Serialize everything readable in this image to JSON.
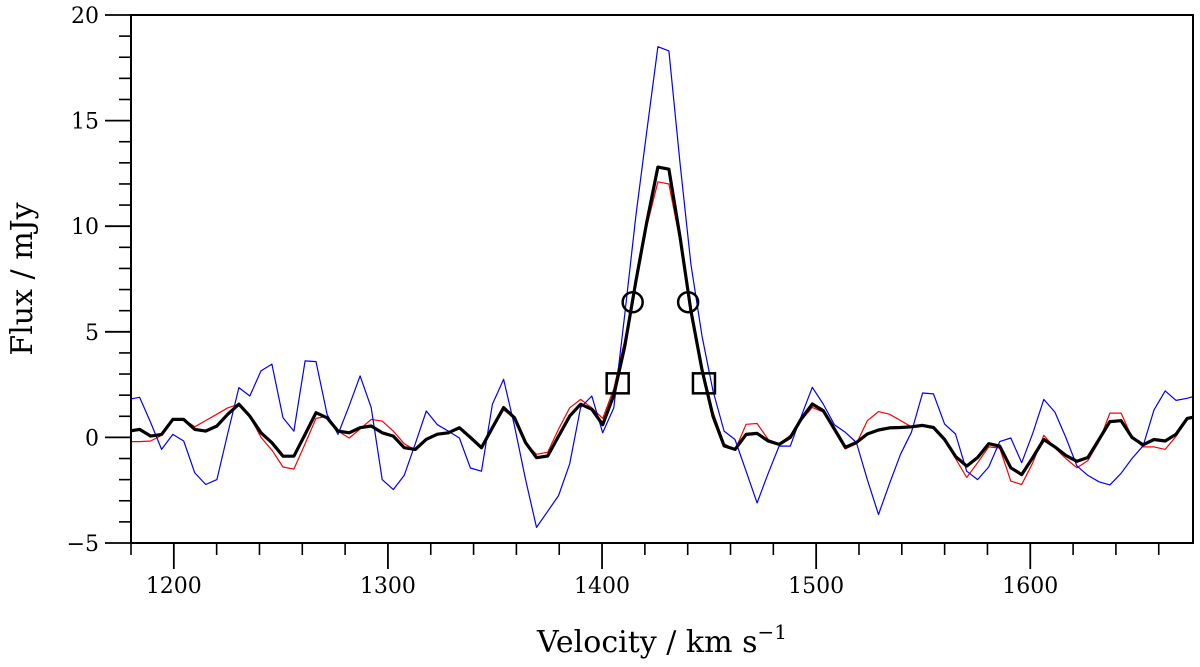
{
  "chart_data": {
    "type": "line",
    "title": "",
    "xlabel": "Velocity / km s",
    "xlabel_superscript": "−1",
    "ylabel": "Flux / mJy",
    "xlim": [
      1180,
      1676
    ],
    "ylim": [
      -5,
      20
    ],
    "x_ticks": [
      1200,
      1300,
      1400,
      1500,
      1600
    ],
    "x_tick_labels": [
      "1200",
      "1300",
      "1400",
      "1500",
      "1600"
    ],
    "x_minor_tick_step": 20,
    "y_ticks": [
      -5,
      0,
      5,
      10,
      15,
      20
    ],
    "y_tick_labels": [
      "−5",
      "0",
      "5",
      "10",
      "15",
      "20"
    ],
    "y_minor_tick_step": 1,
    "grid": false,
    "legend": "none",
    "x": [
      1178.9,
      1184.0,
      1189.2,
      1194.3,
      1199.5,
      1204.6,
      1209.8,
      1214.9,
      1220.1,
      1225.2,
      1230.4,
      1235.5,
      1240.7,
      1245.8,
      1251.0,
      1256.1,
      1261.3,
      1266.4,
      1271.6,
      1276.7,
      1281.9,
      1287.0,
      1292.2,
      1297.3,
      1302.5,
      1307.6,
      1312.8,
      1317.9,
      1323.1,
      1328.2,
      1333.4,
      1338.5,
      1343.7,
      1348.8,
      1354.0,
      1359.1,
      1364.3,
      1369.4,
      1374.6,
      1379.7,
      1384.9,
      1390.0,
      1395.2,
      1400.3,
      1405.5,
      1410.6,
      1415.8,
      1420.9,
      1426.1,
      1431.2,
      1436.4,
      1441.5,
      1446.7,
      1451.8,
      1457.0,
      1462.1,
      1467.3,
      1472.4,
      1477.6,
      1482.7,
      1487.9,
      1493.0,
      1498.2,
      1503.3,
      1508.5,
      1513.6,
      1518.8,
      1523.9,
      1529.1,
      1534.2,
      1539.4,
      1544.5,
      1549.7,
      1554.8,
      1560.0,
      1565.1,
      1570.3,
      1575.4,
      1580.6,
      1585.7,
      1590.9,
      1596.0,
      1601.2,
      1606.3,
      1611.5,
      1616.6,
      1621.8,
      1626.9,
      1632.1,
      1637.2,
      1642.4,
      1647.5,
      1652.7,
      1657.8,
      1663.0,
      1668.1,
      1673.3,
      1678.4
    ],
    "series": [
      {
        "color": "#ff0000",
        "values": [
          -0.2,
          -0.2,
          -0.17,
          0.1,
          0.8,
          0.85,
          0.5,
          0.8,
          1.1,
          1.4,
          1.57,
          1.0,
          0.0,
          -0.6,
          -1.4,
          -1.5,
          -0.3,
          0.9,
          1.0,
          0.3,
          -0.03,
          0.4,
          0.85,
          0.77,
          0.3,
          -0.3,
          -0.6,
          -0.1,
          0.15,
          0.22,
          0.4,
          0.0,
          -0.5,
          0.4,
          1.3,
          0.9,
          -0.3,
          -0.8,
          -0.7,
          0.4,
          1.4,
          1.8,
          1.4,
          0.9,
          2.3,
          4.6,
          7.3,
          10.0,
          12.1,
          12.0,
          9.3,
          6.2,
          3.3,
          1.2,
          -0.3,
          -0.6,
          0.62,
          0.66,
          -0.1,
          -0.3,
          0.1,
          0.8,
          1.42,
          1.2,
          0.3,
          -0.55,
          -0.3,
          0.79,
          1.22,
          1.1,
          0.8,
          0.5,
          0.55,
          0.45,
          -0.1,
          -1.0,
          -1.9,
          -1.2,
          -0.45,
          -0.5,
          -2.07,
          -2.23,
          -1.2,
          0.1,
          -0.5,
          -1.0,
          -1.44,
          -1.1,
          -0.2,
          1.15,
          1.15,
          0.0,
          -0.45,
          -0.45,
          -0.57,
          0.05,
          0.9,
          1.0
        ]
      },
      {
        "color": "#0000ff",
        "values": [
          1.8,
          1.9,
          0.7,
          -0.57,
          0.14,
          -0.17,
          -1.68,
          -2.23,
          -2.0,
          0.2,
          2.36,
          1.96,
          3.15,
          3.47,
          0.93,
          0.3,
          3.62,
          3.59,
          1.09,
          0.14,
          1.5,
          2.91,
          1.41,
          -2.0,
          -2.47,
          -1.8,
          -0.3,
          1.25,
          0.6,
          0.3,
          -0.03,
          -1.45,
          -1.6,
          1.57,
          2.75,
          0.54,
          -2.0,
          -4.26,
          -3.5,
          -2.75,
          -1.25,
          1.41,
          1.96,
          0.22,
          1.4,
          5.8,
          10.5,
          14.5,
          18.5,
          18.3,
          13.0,
          8.2,
          4.8,
          2.2,
          0.3,
          -0.1,
          -1.6,
          -3.1,
          -1.7,
          -0.41,
          -0.41,
          1.0,
          2.37,
          1.58,
          0.6,
          0.24,
          -0.24,
          -2.0,
          -3.65,
          -2.2,
          -0.8,
          0.24,
          2.1,
          2.06,
          0.63,
          0.16,
          -1.6,
          -2.0,
          -1.4,
          -0.2,
          -0.03,
          -1.2,
          0.2,
          1.8,
          1.2,
          0.0,
          -1.36,
          -1.8,
          -2.1,
          -2.25,
          -1.7,
          -1.0,
          -0.4,
          1.3,
          2.2,
          1.75,
          1.85,
          2.0
        ]
      },
      {
        "color": "#000000",
        "values": [
          0.3,
          0.38,
          0.06,
          0.14,
          0.85,
          0.85,
          0.38,
          0.3,
          0.54,
          1.1,
          1.57,
          1.01,
          0.22,
          -0.25,
          -0.89,
          -0.89,
          0.14,
          1.17,
          0.93,
          0.3,
          0.22,
          0.46,
          0.54,
          0.22,
          0.06,
          -0.49,
          -0.57,
          -0.09,
          0.15,
          0.22,
          0.46,
          0.0,
          -0.49,
          0.46,
          1.41,
          0.93,
          -0.25,
          -0.96,
          -0.88,
          0.06,
          1.01,
          1.57,
          1.33,
          0.6,
          2.0,
          4.3,
          7.4,
          10.2,
          12.8,
          12.7,
          9.5,
          6.0,
          3.2,
          1.0,
          -0.4,
          -0.57,
          0.14,
          0.19,
          -0.17,
          -0.33,
          0.0,
          0.87,
          1.58,
          1.27,
          0.4,
          -0.47,
          -0.24,
          0.16,
          0.35,
          0.45,
          0.47,
          0.5,
          0.57,
          0.47,
          -0.1,
          -0.9,
          -1.36,
          -0.95,
          -0.3,
          -0.41,
          -1.44,
          -1.76,
          -0.95,
          -0.1,
          -0.45,
          -0.85,
          -1.13,
          -0.95,
          -0.1,
          0.75,
          0.79,
          0.0,
          -0.35,
          -0.1,
          -0.17,
          0.15,
          0.9,
          1.0
        ]
      }
    ],
    "markers": [
      {
        "shape": "circle",
        "x": 1414.3,
        "y": 6.4
      },
      {
        "shape": "circle",
        "x": 1440.2,
        "y": 6.4
      },
      {
        "shape": "square",
        "x": 1407.3,
        "y": 2.56
      },
      {
        "shape": "square",
        "x": 1447.6,
        "y": 2.56
      }
    ]
  }
}
